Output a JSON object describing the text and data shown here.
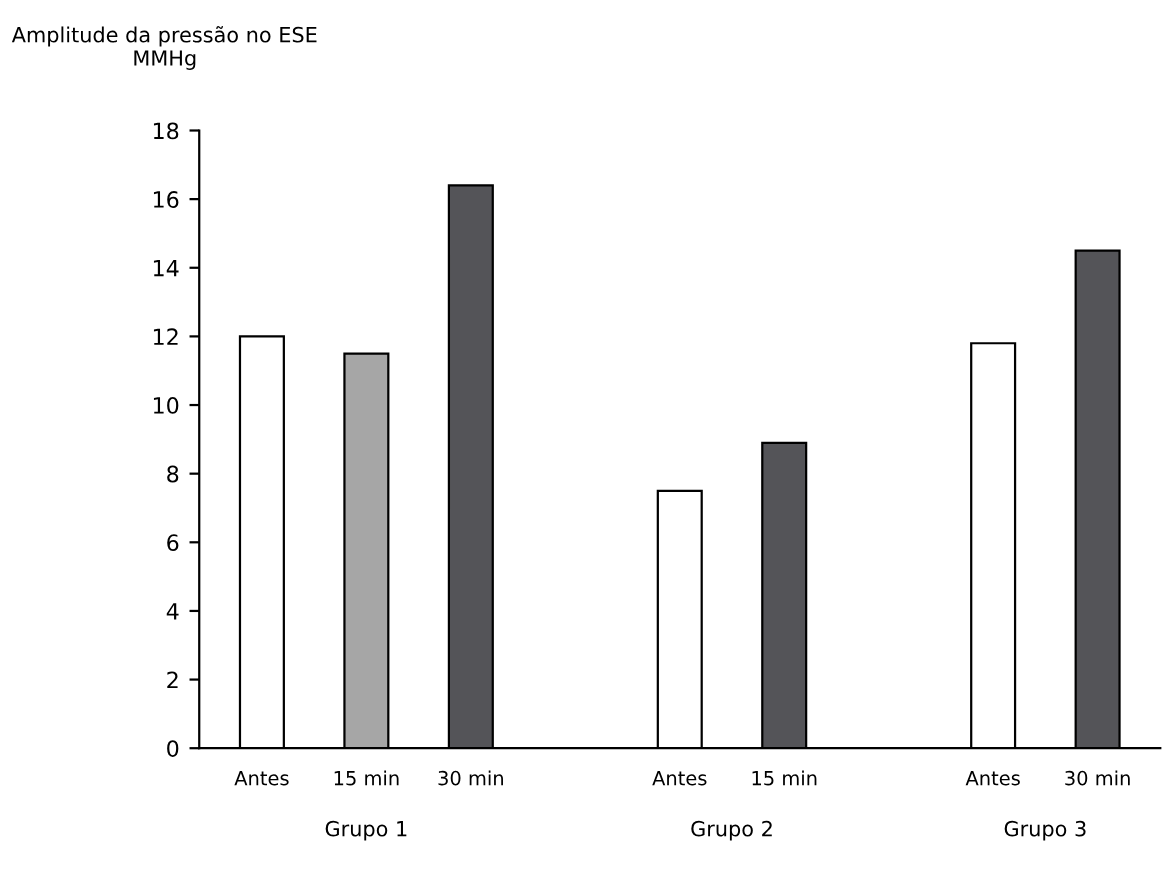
{
  "chart_data": {
    "type": "bar",
    "ylabel": "Amplitude da pressão no ESE\nMMHg",
    "categories": [
      "Antes",
      "15 min",
      "30 min",
      null,
      "Antes",
      "15 min",
      null,
      "Antes",
      "30 min"
    ],
    "values": [
      12,
      11.5,
      16.4,
      null,
      7.5,
      8.9,
      null,
      11.8,
      14.5
    ],
    "colors": [
      "#ffffff",
      "#a6a6a6",
      "#545458",
      "#ffffff",
      "#ffffff",
      "#545458",
      "#ffffff",
      "#ffffff",
      "#545458"
    ],
    "ylim": [
      0,
      18
    ],
    "yticks": [
      0,
      2,
      4,
      6,
      8,
      10,
      12,
      14,
      16,
      18
    ],
    "grid": false,
    "annotations": [
      "Grupo 1",
      "Grupo 2",
      "Grupo 3"
    ]
  }
}
